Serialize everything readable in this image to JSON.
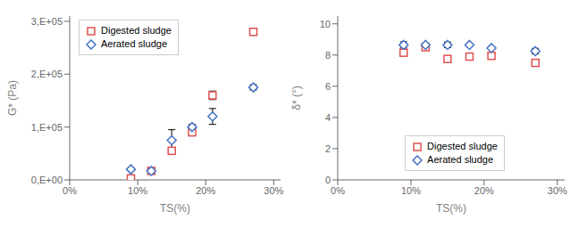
{
  "chart_data": [
    {
      "type": "scatter",
      "xlabel": "TS(%)",
      "ylabel": "G* (Pa)",
      "x": [
        0.09,
        0.12,
        0.15,
        0.18,
        0.21,
        0.27
      ],
      "series": [
        {
          "name": "Digested sludge",
          "color": "#e05050",
          "marker": "square",
          "values": [
            3000,
            17000,
            55000,
            90000,
            160000,
            280000
          ],
          "yerr": [
            500,
            1500,
            4000,
            0,
            8000,
            6000
          ]
        },
        {
          "name": "Aerated sludge",
          "color": "#4472c4",
          "marker": "diamond",
          "values": [
            20000,
            17000,
            75000,
            100000,
            120000,
            175000
          ],
          "yerr": [
            2000,
            2000,
            20000,
            5000,
            15000,
            5000
          ]
        }
      ],
      "xlim": [
        0,
        0.31
      ],
      "ylim": [
        0,
        310000
      ],
      "xticks": [
        {
          "value": 0,
          "label": "0%"
        },
        {
          "value": 0.1,
          "label": "10%"
        },
        {
          "value": 0.2,
          "label": "20%"
        },
        {
          "value": 0.3,
          "label": "30%"
        }
      ],
      "yticks": [
        {
          "value": 0,
          "label": "0,E+00"
        },
        {
          "value": 100000,
          "label": "1,E+05"
        },
        {
          "value": 200000,
          "label": "2,E+05"
        },
        {
          "value": 300000,
          "label": "3,E+05"
        }
      ],
      "legend": "upper left",
      "grid": false
    },
    {
      "type": "scatter",
      "xlabel": "TS(%)",
      "ylabel": "δ* (°)",
      "x": [
        0.09,
        0.12,
        0.15,
        0.18,
        0.21,
        0.27
      ],
      "series": [
        {
          "name": "Digested sludge",
          "color": "#e05050",
          "marker": "square",
          "values": [
            8.15,
            8.5,
            7.75,
            7.9,
            7.95,
            7.5
          ],
          "yerr": [
            0.08,
            0.08,
            0.12,
            0.08,
            0.12,
            0.08
          ]
        },
        {
          "name": "Aerated sludge",
          "color": "#4472c4",
          "marker": "diamond",
          "values": [
            8.65,
            8.65,
            8.65,
            8.65,
            8.45,
            8.25
          ],
          "yerr": [
            0.2,
            0.08,
            0.18,
            0.05,
            0.08,
            0.18
          ]
        }
      ],
      "xlim": [
        0,
        0.31
      ],
      "ylim": [
        0,
        10.5
      ],
      "xticks": [
        {
          "value": 0,
          "label": "0%"
        },
        {
          "value": 0.1,
          "label": "10%"
        },
        {
          "value": 0.2,
          "label": "20%"
        },
        {
          "value": 0.3,
          "label": "30%"
        }
      ],
      "yticks": [
        0,
        2,
        4,
        6,
        8,
        10
      ],
      "legend": "lower center",
      "grid": false
    }
  ]
}
